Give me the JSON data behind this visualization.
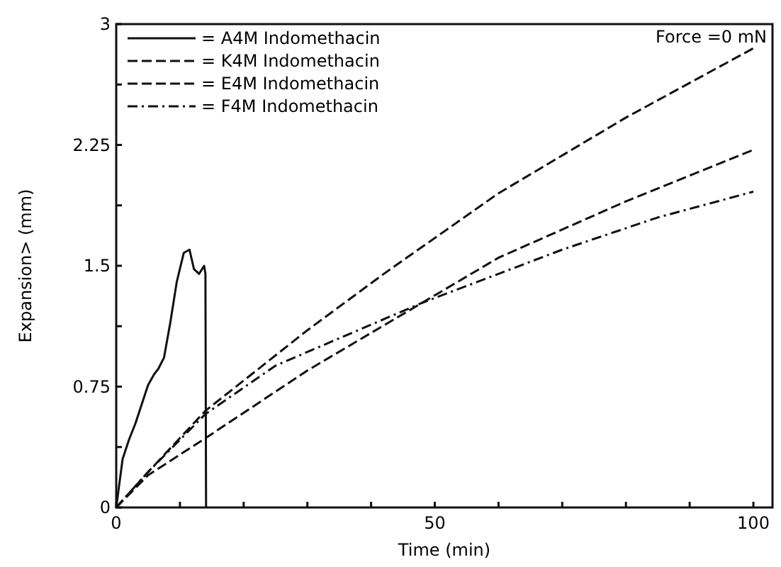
{
  "chart_data": {
    "type": "line",
    "xlabel": "Time  (min)",
    "ylabel": "Expansion>  (mm)",
    "annotations": [
      "Force =0 mN"
    ],
    "xlim": [
      0,
      103
    ],
    "ylim": [
      0,
      3
    ],
    "xticks": [
      0,
      {
        "value": 10,
        "label": null
      },
      {
        "value": 20,
        "label": null
      },
      {
        "value": 30,
        "label": null
      },
      {
        "value": 40,
        "label": null
      },
      50,
      {
        "value": 60,
        "label": null
      },
      {
        "value": 70,
        "label": null
      },
      {
        "value": 80,
        "label": null
      },
      {
        "value": 90,
        "label": null
      },
      100
    ],
    "yticks": [
      0,
      {
        "value": 0.375,
        "label": null
      },
      0.75,
      {
        "value": 1.125,
        "label": null
      },
      1.5,
      {
        "value": 1.875,
        "label": null
      },
      2.25,
      {
        "value": 2.625,
        "label": null
      },
      3
    ],
    "grid": false,
    "legend": "top left",
    "series": [
      {
        "name": "= A4M Indomethacin",
        "color": "#111111",
        "line_style": "solid",
        "x": [
          0,
          0.5,
          1,
          2,
          3,
          4,
          5,
          6,
          6.6,
          7.5,
          8.5,
          9.5,
          10.6,
          11.5,
          12.2,
          13,
          13.8,
          14,
          14.1
        ],
        "values": [
          0,
          0.15,
          0.3,
          0.42,
          0.52,
          0.64,
          0.76,
          0.83,
          0.86,
          0.93,
          1.15,
          1.4,
          1.58,
          1.6,
          1.48,
          1.45,
          1.5,
          1.45,
          0
        ]
      },
      {
        "name": "= K4M Indomethacin",
        "color": "#111111",
        "line_style": "dashed",
        "x": [
          0,
          5,
          14,
          30,
          42,
          60,
          80,
          100
        ],
        "values": [
          0,
          0.22,
          0.6,
          1.1,
          1.45,
          1.95,
          2.42,
          2.85
        ]
      },
      {
        "name": "= E4M Indomethacin",
        "color": "#111111",
        "line_style": "dashed",
        "x": [
          0,
          5,
          14,
          30,
          48,
          60,
          80,
          100
        ],
        "values": [
          0,
          0.2,
          0.43,
          0.85,
          1.27,
          1.55,
          1.9,
          2.22
        ]
      },
      {
        "name": "= F4M Indomethacin",
        "color": "#111111",
        "line_style": "dashdot",
        "x": [
          0,
          5,
          14,
          25,
          35,
          48,
          70,
          85,
          100
        ],
        "values": [
          0,
          0.22,
          0.58,
          0.88,
          1.05,
          1.27,
          1.6,
          1.8,
          1.96
        ]
      }
    ]
  }
}
